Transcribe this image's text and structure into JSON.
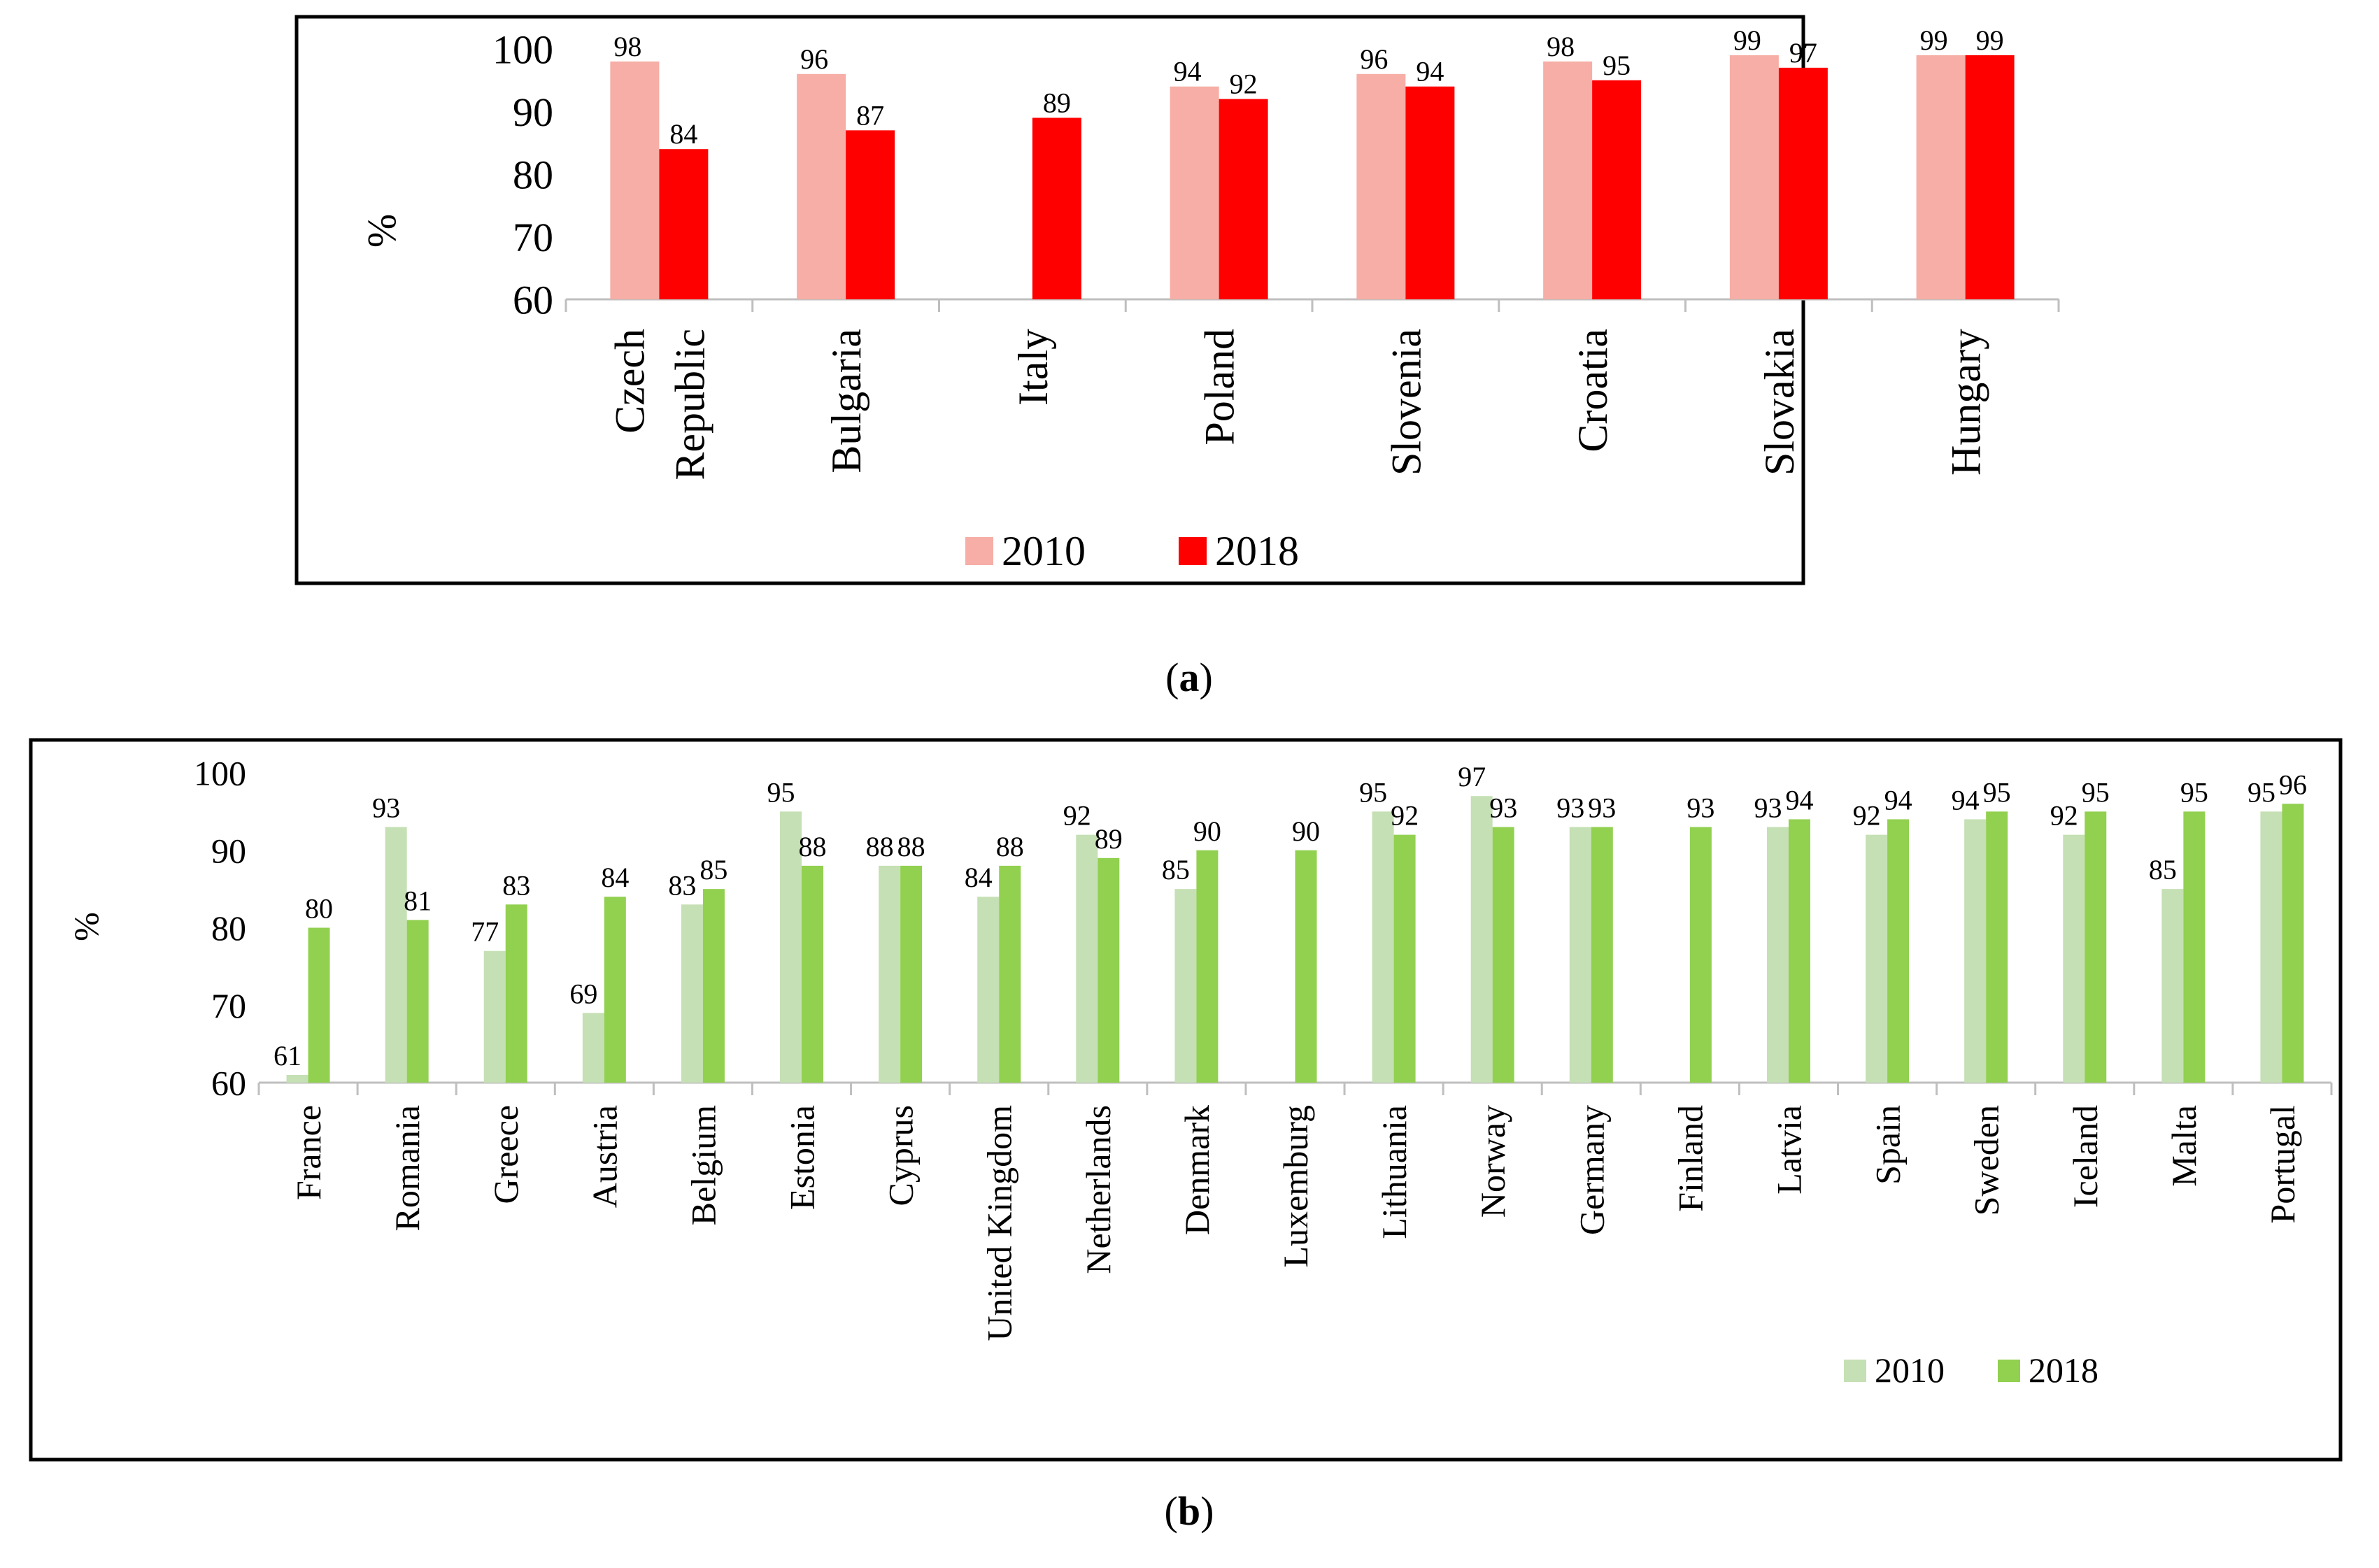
{
  "chart_data": [
    {
      "id": "a",
      "type": "bar",
      "caption_letter": "a",
      "ylabel": "%",
      "ylim": [
        60,
        100
      ],
      "yticks": [
        60,
        70,
        80,
        90,
        100
      ],
      "categories": [
        [
          "Czech",
          "Republic"
        ],
        [
          "Bulgaria"
        ],
        [
          "Italy"
        ],
        [
          "Poland"
        ],
        [
          "Slovenia"
        ],
        [
          "Croatia"
        ],
        [
          "Slovakia"
        ],
        [
          "Hungary"
        ]
      ],
      "series": [
        {
          "name": "2010",
          "color": "#f6aea6",
          "values": [
            98,
            96,
            null,
            94,
            96,
            98,
            99,
            99
          ]
        },
        {
          "name": "2018",
          "color": "#fe0000",
          "values": [
            84,
            87,
            89,
            92,
            94,
            95,
            97,
            99
          ]
        }
      ],
      "legend": "bottom-center"
    },
    {
      "id": "b",
      "type": "bar",
      "caption_letter": "b",
      "ylabel": "%",
      "ylim": [
        60,
        100
      ],
      "yticks": [
        60,
        70,
        80,
        90,
        100
      ],
      "categories": [
        [
          "France"
        ],
        [
          "Romania"
        ],
        [
          "Greece"
        ],
        [
          "Austria"
        ],
        [
          "Belgium"
        ],
        [
          "Estonia"
        ],
        [
          "Cyprus"
        ],
        [
          "United Kingdom"
        ],
        [
          "Netherlands"
        ],
        [
          "Denmark"
        ],
        [
          "Luxemburg"
        ],
        [
          "Lithuania"
        ],
        [
          "Norway"
        ],
        [
          "Germany"
        ],
        [
          "Finland"
        ],
        [
          "Latvia"
        ],
        [
          "Spain"
        ],
        [
          "Sweden"
        ],
        [
          "Iceland"
        ],
        [
          "Malta"
        ],
        [
          "Portugal"
        ]
      ],
      "series": [
        {
          "name": "2010",
          "color": "#c5e0b4",
          "values": [
            61,
            93,
            77,
            69,
            83,
            95,
            88,
            84,
            92,
            85,
            null,
            95,
            97,
            93,
            null,
            93,
            92,
            94,
            92,
            85,
            95
          ]
        },
        {
          "name": "2018",
          "color": "#92d050",
          "values": [
            80,
            81,
            83,
            84,
            85,
            88,
            88,
            88,
            89,
            90,
            90,
            92,
            93,
            93,
            93,
            94,
            94,
            95,
            95,
            95,
            96
          ]
        }
      ],
      "legend": "bottom-right"
    }
  ]
}
